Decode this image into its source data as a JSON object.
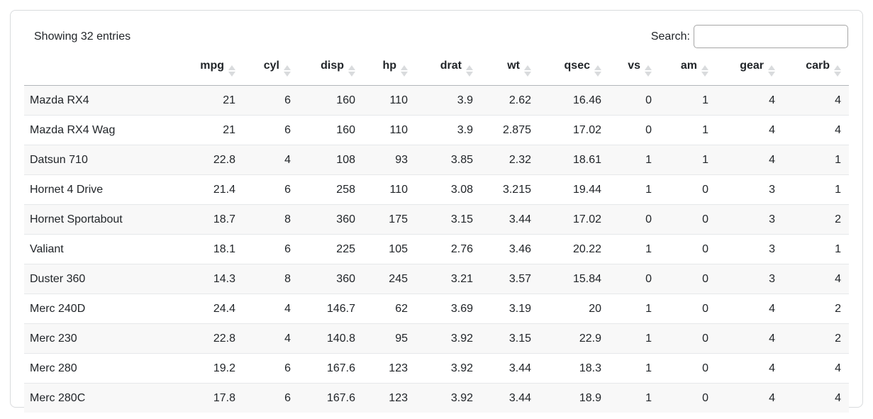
{
  "controls": {
    "showing_text": "Showing 32 entries",
    "search_label": "Search:",
    "search_value": "",
    "search_placeholder": ""
  },
  "table": {
    "row_name_header": "",
    "columns": [
      "mpg",
      "cyl",
      "disp",
      "hp",
      "drat",
      "wt",
      "qsec",
      "vs",
      "am",
      "gear",
      "carb"
    ],
    "rows": [
      {
        "name": "Mazda RX4",
        "values": [
          "21",
          "6",
          "160",
          "110",
          "3.9",
          "2.62",
          "16.46",
          "0",
          "1",
          "4",
          "4"
        ]
      },
      {
        "name": "Mazda RX4 Wag",
        "values": [
          "21",
          "6",
          "160",
          "110",
          "3.9",
          "2.875",
          "17.02",
          "0",
          "1",
          "4",
          "4"
        ]
      },
      {
        "name": "Datsun 710",
        "values": [
          "22.8",
          "4",
          "108",
          "93",
          "3.85",
          "2.32",
          "18.61",
          "1",
          "1",
          "4",
          "1"
        ]
      },
      {
        "name": "Hornet 4 Drive",
        "values": [
          "21.4",
          "6",
          "258",
          "110",
          "3.08",
          "3.215",
          "19.44",
          "1",
          "0",
          "3",
          "1"
        ]
      },
      {
        "name": "Hornet Sportabout",
        "values": [
          "18.7",
          "8",
          "360",
          "175",
          "3.15",
          "3.44",
          "17.02",
          "0",
          "0",
          "3",
          "2"
        ]
      },
      {
        "name": "Valiant",
        "values": [
          "18.1",
          "6",
          "225",
          "105",
          "2.76",
          "3.46",
          "20.22",
          "1",
          "0",
          "3",
          "1"
        ]
      },
      {
        "name": "Duster 360",
        "values": [
          "14.3",
          "8",
          "360",
          "245",
          "3.21",
          "3.57",
          "15.84",
          "0",
          "0",
          "3",
          "4"
        ]
      },
      {
        "name": "Merc 240D",
        "values": [
          "24.4",
          "4",
          "146.7",
          "62",
          "3.69",
          "3.19",
          "20",
          "1",
          "0",
          "4",
          "2"
        ]
      },
      {
        "name": "Merc 230",
        "values": [
          "22.8",
          "4",
          "140.8",
          "95",
          "3.92",
          "3.15",
          "22.9",
          "1",
          "0",
          "4",
          "2"
        ]
      },
      {
        "name": "Merc 280",
        "values": [
          "19.2",
          "6",
          "167.6",
          "123",
          "3.92",
          "3.44",
          "18.3",
          "1",
          "0",
          "4",
          "4"
        ]
      },
      {
        "name": "Merc 280C",
        "values": [
          "17.8",
          "6",
          "167.6",
          "123",
          "3.92",
          "3.44",
          "18.9",
          "1",
          "0",
          "4",
          "4"
        ]
      }
    ]
  },
  "colors": {
    "stripe": "#f8f8f8",
    "row_border": "#e6e8ea",
    "header_border": "#b2b6ba",
    "card_border": "#d9dbdd",
    "sort_icon": "#d9dbdd",
    "text": "#212529"
  }
}
